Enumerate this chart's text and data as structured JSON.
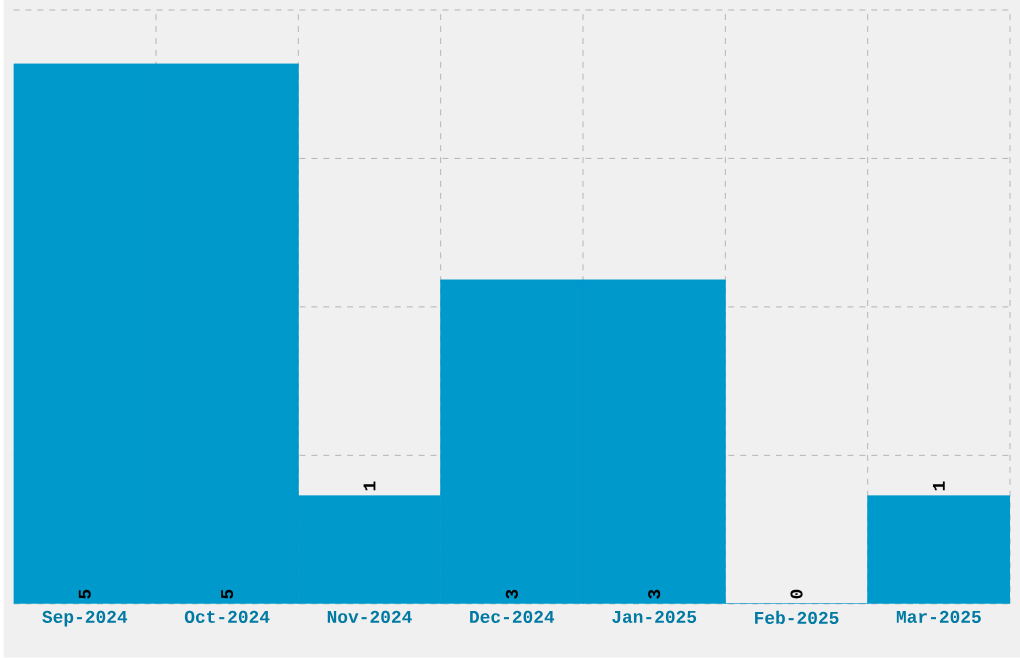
{
  "chart_data": {
    "type": "bar",
    "categories": [
      "Sep-2024",
      "Oct-2024",
      "Nov-2024",
      "Dec-2024",
      "Jan-2025",
      "Feb-2025",
      "Mar-2025"
    ],
    "values": [
      5,
      5,
      1,
      3,
      3,
      0,
      1
    ],
    "color": "#0099cc",
    "data_labels": true,
    "grid": true,
    "tick_labels": "x",
    "ylim": [
      0,
      5.5
    ],
    "yticks": [
      {
        "value": 0,
        "label": null
      },
      {
        "value": 1.375,
        "label": null
      },
      {
        "value": 2.75,
        "label": null
      },
      {
        "value": 4.125,
        "label": null
      },
      {
        "value": 5.5,
        "label": null
      }
    ]
  }
}
